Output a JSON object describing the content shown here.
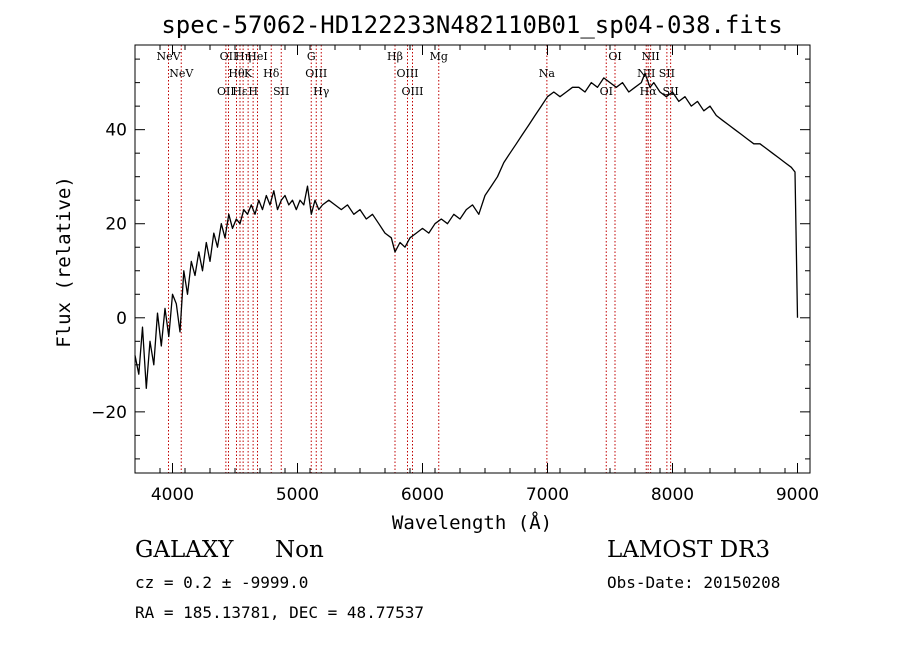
{
  "chart_data": {
    "type": "line",
    "title": "spec-57062-HD122233N482110B01_sp04-038.fits",
    "xlabel": "Wavelength (Å)",
    "ylabel": "Flux (relative)",
    "xlim": [
      3700,
      9100
    ],
    "ylim": [
      -33,
      58
    ],
    "xticks": [
      4000,
      5000,
      6000,
      7000,
      8000,
      9000
    ],
    "yticks": [
      -20,
      0,
      20,
      40
    ],
    "grid": false,
    "legend": "none",
    "series": [
      {
        "name": "flux",
        "x": [
          3700,
          3730,
          3760,
          3790,
          3820,
          3850,
          3880,
          3910,
          3940,
          3970,
          4000,
          4030,
          4060,
          4090,
          4120,
          4150,
          4180,
          4210,
          4240,
          4270,
          4300,
          4330,
          4360,
          4390,
          4420,
          4450,
          4480,
          4510,
          4540,
          4570,
          4600,
          4630,
          4660,
          4690,
          4720,
          4750,
          4780,
          4810,
          4840,
          4870,
          4900,
          4930,
          4960,
          4990,
          5020,
          5050,
          5080,
          5110,
          5140,
          5170,
          5200,
          5250,
          5300,
          5350,
          5400,
          5450,
          5500,
          5550,
          5600,
          5650,
          5700,
          5750,
          5780,
          5820,
          5860,
          5900,
          5950,
          6000,
          6050,
          6100,
          6150,
          6200,
          6250,
          6300,
          6350,
          6400,
          6450,
          6500,
          6550,
          6600,
          6650,
          6700,
          6750,
          6800,
          6850,
          6900,
          6950,
          7000,
          7050,
          7100,
          7150,
          7200,
          7250,
          7300,
          7350,
          7400,
          7450,
          7500,
          7550,
          7600,
          7650,
          7700,
          7750,
          7780,
          7820,
          7850,
          7900,
          7950,
          8000,
          8050,
          8100,
          8150,
          8200,
          8250,
          8300,
          8350,
          8400,
          8450,
          8500,
          8550,
          8600,
          8650,
          8700,
          8750,
          8800,
          8850,
          8900,
          8950,
          8980,
          9000
        ],
        "y": [
          -8,
          -12,
          -2,
          -15,
          -5,
          -10,
          1,
          -6,
          2,
          -4,
          5,
          3,
          -3,
          10,
          5,
          12,
          9,
          14,
          10,
          16,
          12,
          18,
          15,
          20,
          17,
          22,
          19,
          21,
          20,
          23,
          22,
          24,
          22,
          25,
          23,
          26,
          24,
          27,
          23,
          25,
          26,
          24,
          25,
          23,
          25,
          24,
          28,
          22,
          25,
          23,
          24,
          25,
          24,
          23,
          24,
          22,
          23,
          21,
          22,
          20,
          18,
          17,
          14,
          16,
          15,
          17,
          18,
          19,
          18,
          20,
          21,
          20,
          22,
          21,
          23,
          24,
          22,
          26,
          28,
          30,
          33,
          35,
          37,
          39,
          41,
          43,
          45,
          47,
          48,
          47,
          48,
          49,
          49,
          48,
          50,
          49,
          51,
          50,
          49,
          50,
          48,
          49,
          50,
          52,
          49,
          50,
          48,
          47,
          48,
          46,
          47,
          45,
          46,
          44,
          45,
          43,
          42,
          41,
          40,
          39,
          38,
          37,
          37,
          36,
          35,
          34,
          33,
          32,
          31,
          0
        ]
      }
    ],
    "lines": [
      {
        "label": "NeV",
        "x": 3968
      },
      {
        "label": "NeV",
        "x": 4070
      },
      {
        "label": "OII",
        "x": 4427
      },
      {
        "label": "OII",
        "x": 4448
      },
      {
        "label": "Hθ",
        "x": 4512
      },
      {
        "label": "Hε",
        "x": 4540
      },
      {
        "label": "Hη",
        "x": 4565
      },
      {
        "label": "K",
        "x": 4605
      },
      {
        "label": "H",
        "x": 4645
      },
      {
        "label": "HeI",
        "x": 4680
      },
      {
        "label": "Hδ",
        "x": 4790
      },
      {
        "label": "SII",
        "x": 4870
      },
      {
        "label": "G",
        "x": 5110
      },
      {
        "label": "OIII",
        "x": 5150
      },
      {
        "label": "Hγ",
        "x": 5190
      },
      {
        "label": "Hβ",
        "x": 5780
      },
      {
        "label": "OIII",
        "x": 5880
      },
      {
        "label": "OIII",
        "x": 5920
      },
      {
        "label": "Mg",
        "x": 6130
      },
      {
        "label": "Na",
        "x": 6995
      },
      {
        "label": "OI",
        "x": 7470
      },
      {
        "label": "OI",
        "x": 7540
      },
      {
        "label": "NII",
        "x": 7790
      },
      {
        "label": "Hα",
        "x": 7805
      },
      {
        "label": "NII",
        "x": 7825
      },
      {
        "label": "SII",
        "x": 7955
      },
      {
        "label": "SII",
        "x": 7985
      }
    ]
  },
  "info": {
    "class": "GALAXY",
    "subclass": "Non",
    "survey": "LAMOST DR3",
    "cz": "cz = 0.2 ± -9999.0",
    "obs_date": "Obs-Date: 20150208",
    "radec": "RA = 185.13781, DEC =  48.77537"
  },
  "colors": {
    "line_marker": "#c00000",
    "spectrum": "#000000"
  }
}
